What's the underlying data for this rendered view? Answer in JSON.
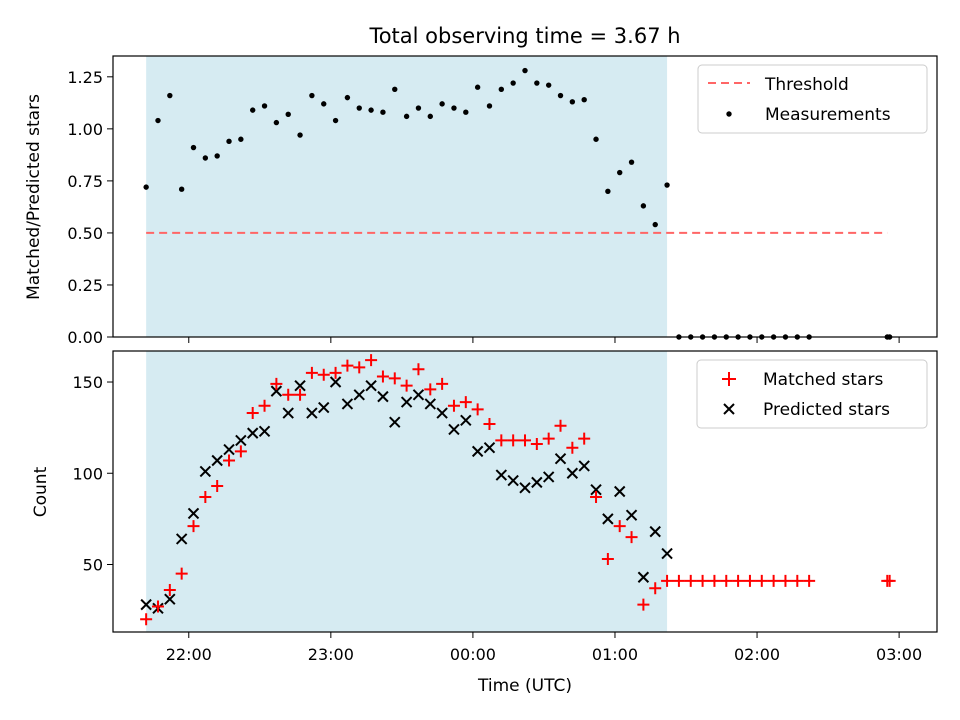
{
  "figure": {
    "title": "Total observing time = 3.67 h",
    "xlabel": "Time (UTC)"
  },
  "chart_data": [
    {
      "type": "scatter",
      "ylabel": "Matched/Predicted stars",
      "xlim": [
        "21:28",
        "03:16"
      ],
      "ylim": [
        0,
        1.35
      ],
      "yticks": [
        "0.00",
        "0.25",
        "0.50",
        "0.75",
        "1.00",
        "1.25"
      ],
      "xticks": [
        "22:00",
        "23:00",
        "00:00",
        "01:00",
        "02:00",
        "03:00"
      ],
      "observing_window": [
        "21:42",
        "01:22"
      ],
      "threshold": {
        "name": "Threshold",
        "value": 0.5,
        "from": "21:42",
        "to": "02:55"
      },
      "legend_position": "top-right",
      "series": [
        {
          "name": "Measurements",
          "color": "#000000",
          "x": [
            "21:42",
            "21:47",
            "21:52",
            "21:57",
            "22:02",
            "22:07",
            "22:12",
            "22:17",
            "22:22",
            "22:27",
            "22:32",
            "22:37",
            "22:42",
            "22:47",
            "22:52",
            "22:57",
            "23:02",
            "23:07",
            "23:12",
            "23:17",
            "23:22",
            "23:27",
            "23:32",
            "23:37",
            "23:42",
            "23:47",
            "23:52",
            "23:57",
            "00:02",
            "00:07",
            "00:12",
            "00:17",
            "00:22",
            "00:27",
            "00:32",
            "00:37",
            "00:42",
            "00:47",
            "00:52",
            "00:57",
            "01:02",
            "01:07",
            "01:12",
            "01:17",
            "01:22",
            "01:27",
            "01:32",
            "01:37",
            "01:42",
            "01:47",
            "01:52",
            "01:57",
            "02:02",
            "02:07",
            "02:12",
            "02:17",
            "02:22",
            "02:55",
            "02:56"
          ],
          "y": [
            0.72,
            1.04,
            1.16,
            0.71,
            0.91,
            0.86,
            0.87,
            0.94,
            0.95,
            1.09,
            1.11,
            1.03,
            1.07,
            0.97,
            1.16,
            1.12,
            1.04,
            1.15,
            1.1,
            1.09,
            1.08,
            1.19,
            1.06,
            1.1,
            1.06,
            1.12,
            1.1,
            1.08,
            1.2,
            1.11,
            1.19,
            1.22,
            1.28,
            1.22,
            1.21,
            1.16,
            1.13,
            1.14,
            0.95,
            0.7,
            0.79,
            0.84,
            0.63,
            0.54,
            0.73,
            0.0,
            0.0,
            0.0,
            0.0,
            0.0,
            0.0,
            0.0,
            0.0,
            0.0,
            0.0,
            0.0,
            0.0,
            0.0,
            0.0
          ]
        }
      ]
    },
    {
      "type": "scatter",
      "ylabel": "Count",
      "xlim": [
        "21:28",
        "03:16"
      ],
      "ylim": [
        13,
        167
      ],
      "yticks": [
        "50",
        "100",
        "150"
      ],
      "xticks": [
        "22:00",
        "23:00",
        "00:00",
        "01:00",
        "02:00",
        "03:00"
      ],
      "observing_window": [
        "21:42",
        "01:22"
      ],
      "legend_position": "top-right",
      "series": [
        {
          "name": "Matched stars",
          "color": "#ff0000",
          "marker": "+",
          "x": [
            "21:42",
            "21:47",
            "21:52",
            "21:57",
            "22:02",
            "22:07",
            "22:12",
            "22:17",
            "22:22",
            "22:27",
            "22:32",
            "22:37",
            "22:42",
            "22:47",
            "22:52",
            "22:57",
            "23:02",
            "23:07",
            "23:12",
            "23:17",
            "23:22",
            "23:27",
            "23:32",
            "23:37",
            "23:42",
            "23:47",
            "23:52",
            "23:57",
            "00:02",
            "00:07",
            "00:12",
            "00:17",
            "00:22",
            "00:27",
            "00:32",
            "00:37",
            "00:42",
            "00:47",
            "00:52",
            "00:57",
            "01:02",
            "01:07",
            "01:12",
            "01:17",
            "01:22",
            "01:27",
            "01:32",
            "01:37",
            "01:42",
            "01:47",
            "01:52",
            "01:57",
            "02:02",
            "02:07",
            "02:12",
            "02:17",
            "02:22",
            "02:55",
            "02:56"
          ],
          "y": [
            20,
            27,
            36,
            45,
            71,
            87,
            93,
            107,
            112,
            133,
            137,
            149,
            143,
            143,
            155,
            154,
            155,
            159,
            158,
            162,
            153,
            152,
            148,
            157,
            146,
            149,
            137,
            139,
            135,
            127,
            118,
            118,
            118,
            116,
            119,
            126,
            114,
            119,
            87,
            53,
            71,
            65,
            28,
            37,
            41,
            41,
            41,
            41,
            41,
            41,
            41,
            41,
            41,
            41,
            41,
            41,
            41,
            41,
            41
          ]
        },
        {
          "name": "Predicted stars",
          "color": "#000000",
          "marker": "x",
          "x": [
            "21:42",
            "21:47",
            "21:52",
            "21:57",
            "22:02",
            "22:07",
            "22:12",
            "22:17",
            "22:22",
            "22:27",
            "22:32",
            "22:37",
            "22:42",
            "22:47",
            "22:52",
            "22:57",
            "23:02",
            "23:07",
            "23:12",
            "23:17",
            "23:22",
            "23:27",
            "23:32",
            "23:37",
            "23:42",
            "23:47",
            "23:52",
            "23:57",
            "00:02",
            "00:07",
            "00:12",
            "00:17",
            "00:22",
            "00:27",
            "00:32",
            "00:37",
            "00:42",
            "00:47",
            "00:52",
            "00:57",
            "01:02",
            "01:07",
            "01:12",
            "01:17",
            "01:22"
          ],
          "y": [
            28,
            26,
            31,
            64,
            78,
            101,
            107,
            113,
            118,
            122,
            123,
            145,
            133,
            148,
            133,
            136,
            150,
            138,
            143,
            148,
            142,
            128,
            139,
            143,
            138,
            133,
            124,
            129,
            112,
            114,
            99,
            96,
            92,
            95,
            98,
            108,
            100,
            104,
            91,
            75,
            90,
            77,
            43,
            68,
            56
          ]
        }
      ]
    }
  ]
}
